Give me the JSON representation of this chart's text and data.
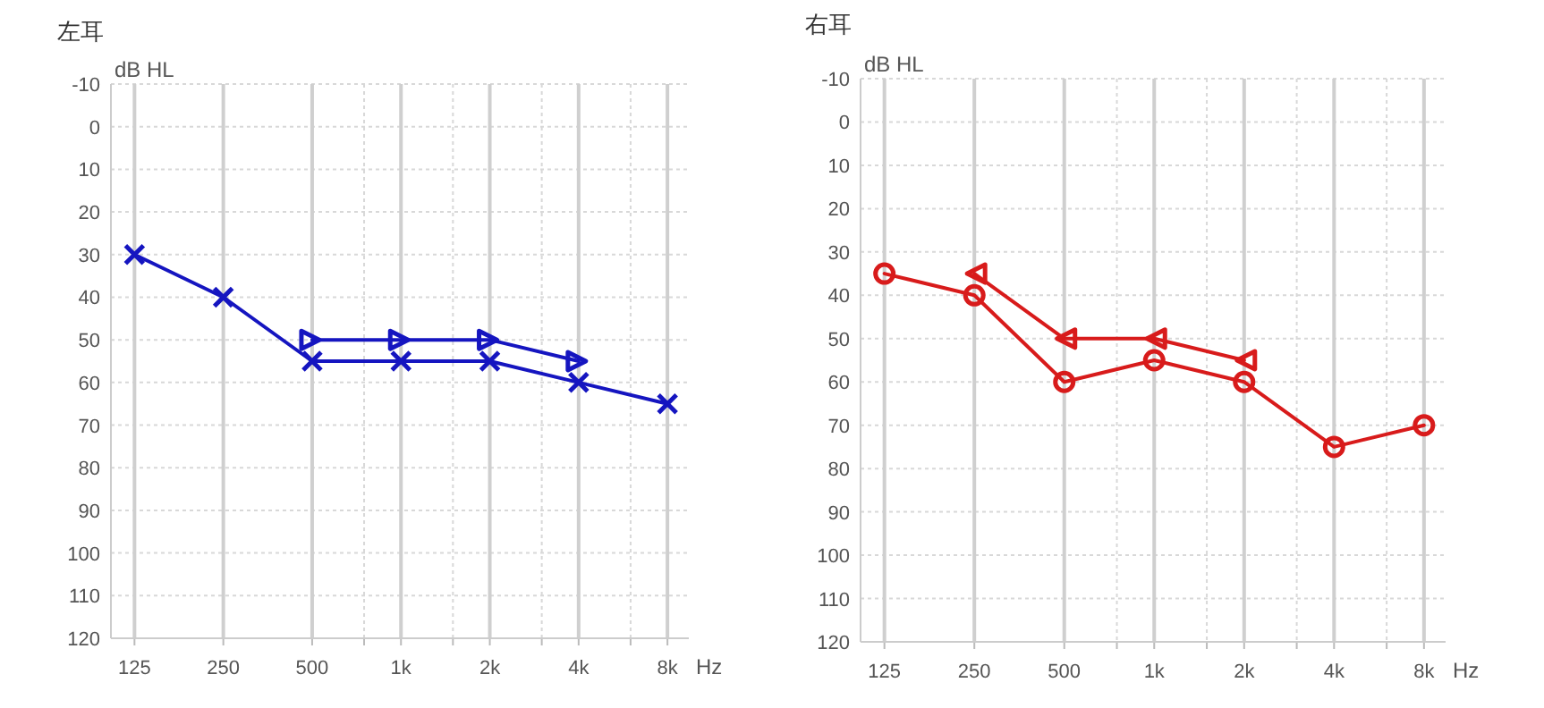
{
  "chart_data": [
    {
      "type": "line",
      "title": "左耳",
      "ylabel": "dB HL",
      "xlabel": "Hz",
      "log": "x",
      "grid": true,
      "xlim": [
        104,
        9450
      ],
      "xticks": [
        {
          "value": 125,
          "label": "125"
        },
        {
          "value": 250,
          "label": "250"
        },
        {
          "value": 500,
          "label": "500"
        },
        {
          "value": 750,
          "label": null
        },
        {
          "value": 1000,
          "label": "1k"
        },
        {
          "value": 1500,
          "label": null
        },
        {
          "value": 2000,
          "label": "2k"
        },
        {
          "value": 3000,
          "label": null
        },
        {
          "value": 4000,
          "label": "4k"
        },
        {
          "value": 6000,
          "label": null
        },
        {
          "value": 8000,
          "label": "8k"
        }
      ],
      "ylim": [
        120,
        -10
      ],
      "yticks": [
        -10,
        0,
        10,
        20,
        30,
        40,
        50,
        60,
        70,
        80,
        90,
        100,
        110,
        120
      ],
      "series": [
        {
          "color": "#1515c0",
          "marker": "cross",
          "x": [
            125,
            250,
            500,
            1000,
            2000,
            4000,
            8000
          ],
          "values": [
            30,
            40,
            55,
            55,
            55,
            60,
            65
          ]
        },
        {
          "color": "#1515c0",
          "marker": "triangle",
          "x": [
            500,
            1000,
            2000,
            4000
          ],
          "values": [
            50,
            50,
            50,
            55
          ]
        }
      ]
    },
    {
      "type": "line",
      "title": "右耳",
      "ylabel": "dB HL",
      "xlabel": "Hz",
      "log": "x",
      "grid": true,
      "xlim": [
        104,
        9450
      ],
      "xticks": [
        {
          "value": 125,
          "label": "125"
        },
        {
          "value": 250,
          "label": "250"
        },
        {
          "value": 500,
          "label": "500"
        },
        {
          "value": 750,
          "label": null
        },
        {
          "value": 1000,
          "label": "1k"
        },
        {
          "value": 1500,
          "label": null
        },
        {
          "value": 2000,
          "label": "2k"
        },
        {
          "value": 3000,
          "label": null
        },
        {
          "value": 4000,
          "label": "4k"
        },
        {
          "value": 6000,
          "label": null
        },
        {
          "value": 8000,
          "label": "8k"
        }
      ],
      "ylim": [
        120,
        -10
      ],
      "yticks": [
        -10,
        0,
        10,
        20,
        30,
        40,
        50,
        60,
        70,
        80,
        90,
        100,
        110,
        120
      ],
      "series": [
        {
          "color": "#d81b1b",
          "marker": "circle",
          "x": [
            125,
            250,
            500,
            1000,
            2000,
            4000,
            8000
          ],
          "values": [
            35,
            40,
            60,
            55,
            60,
            75,
            70
          ]
        },
        {
          "color": "#d81b1b",
          "marker": "triangle",
          "x": [
            250,
            500,
            1000,
            2000
          ],
          "values": [
            35,
            50,
            50,
            55
          ]
        }
      ]
    }
  ]
}
